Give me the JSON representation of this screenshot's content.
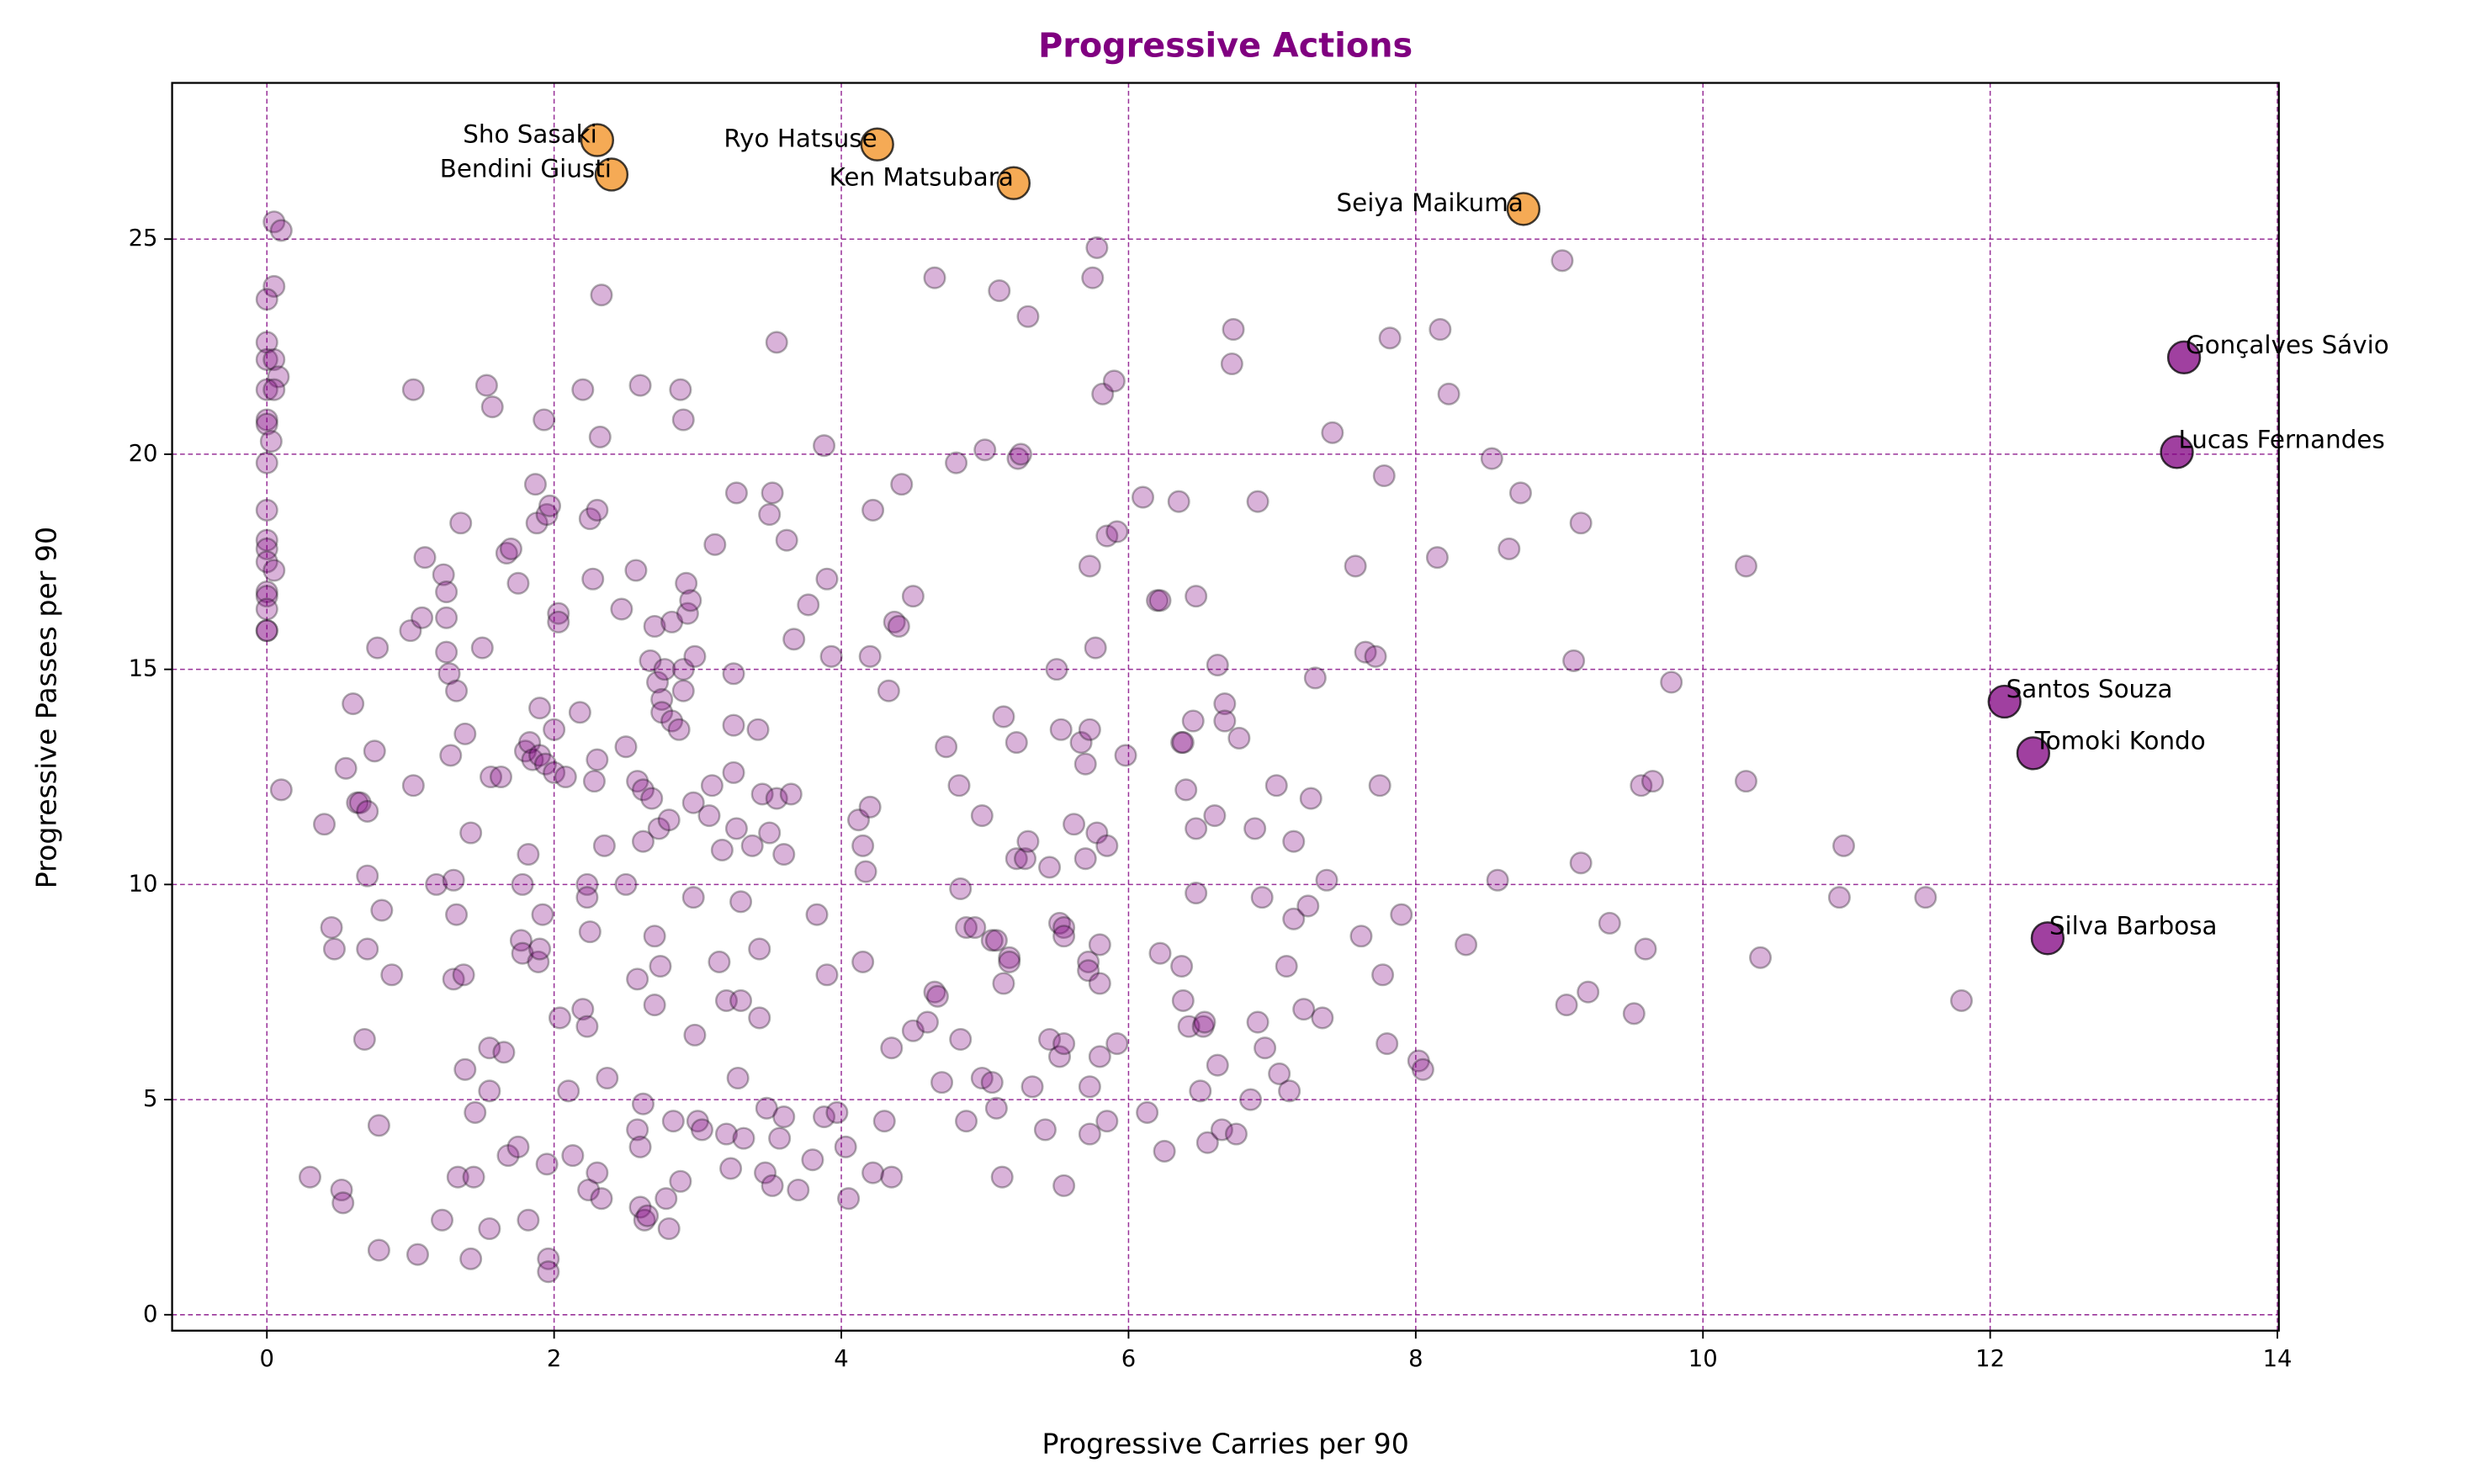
{
  "chart_data": {
    "type": "scatter",
    "title": "Progressive Actions",
    "x_label": "Progressive Carries per 90",
    "y_label": "Progressive Passes per 90",
    "xlim": [
      -0.66,
      14.01
    ],
    "ylim": [
      -0.37,
      28.63
    ],
    "xticks": [
      0,
      2,
      4,
      6,
      8,
      10,
      12,
      14
    ],
    "yticks": [
      0,
      5,
      10,
      15,
      20,
      25
    ],
    "grid": true,
    "grid_color": "#800080",
    "series": [
      {
        "color": "#800080",
        "alpha": 0.3,
        "size": 6.5,
        "x": [
          0.05,
          0.1,
          0.05,
          0,
          0,
          0,
          0.05,
          0.08,
          0,
          0.05,
          0,
          0,
          0.03,
          0,
          0,
          0,
          0,
          0,
          0.05,
          0,
          0,
          0,
          0,
          0,
          0.1,
          0.3,
          0.4,
          0.45,
          0.47,
          0.52,
          0.53,
          0.55,
          0.6,
          0.63,
          0.65,
          0.68,
          0.7,
          0.7,
          0.7,
          0.75,
          0.77,
          0.78,
          0.78,
          0.8,
          0.87,
          1.0,
          1.02,
          1.02,
          1.05,
          1.08,
          1.1,
          1.18,
          1.22,
          1.23,
          1.25,
          1.25,
          1.25,
          1.27,
          1.28,
          1.3,
          1.3,
          1.32,
          1.32,
          1.33,
          1.35,
          1.37,
          1.38,
          1.38,
          1.42,
          1.42,
          1.44,
          1.45,
          1.5,
          1.53,
          1.55,
          1.55,
          1.55,
          1.56,
          1.57,
          1.63,
          1.65,
          1.67,
          1.68,
          1.7,
          1.75,
          1.75,
          1.77,
          1.78,
          1.78,
          1.8,
          1.82,
          1.82,
          1.83,
          1.85,
          1.87,
          1.88,
          1.89,
          1.9,
          1.9,
          1.9,
          1.92,
          1.93,
          1.94,
          1.95,
          1.95,
          1.96,
          1.96,
          1.97,
          2.0,
          2.0,
          2.03,
          2.03,
          2.04,
          2.08,
          2.1,
          2.13,
          2.18,
          2.2,
          2.2,
          2.23,
          2.23,
          2.23,
          2.24,
          2.25,
          2.25,
          2.27,
          2.28,
          2.3,
          2.3,
          2.3,
          2.32,
          2.33,
          2.33,
          2.35,
          2.37,
          2.47,
          2.5,
          2.5,
          2.57,
          2.58,
          2.58,
          2.58,
          2.6,
          2.6,
          2.6,
          2.62,
          2.62,
          2.62,
          2.63,
          2.65,
          2.67,
          2.68,
          2.7,
          2.7,
          2.7,
          2.72,
          2.73,
          2.74,
          2.75,
          2.75,
          2.77,
          2.78,
          2.8,
          2.8,
          2.82,
          2.82,
          2.83,
          2.87,
          2.88,
          2.88,
          2.9,
          2.9,
          2.9,
          2.92,
          2.93,
          2.95,
          2.97,
          2.97,
          2.98,
          2.98,
          3.0,
          3.03,
          3.08,
          3.1,
          3.12,
          3.15,
          3.17,
          3.2,
          3.2,
          3.23,
          3.25,
          3.25,
          3.25,
          3.27,
          3.27,
          3.28,
          3.3,
          3.3,
          3.32,
          3.38,
          3.42,
          3.43,
          3.43,
          3.45,
          3.47,
          3.48,
          3.5,
          3.5,
          3.52,
          3.52,
          3.55,
          3.55,
          3.57,
          3.6,
          3.6,
          3.62,
          3.65,
          3.67,
          3.7,
          3.77,
          3.8,
          3.83,
          3.88,
          3.88,
          3.9,
          3.9,
          3.93,
          3.97,
          4.03,
          4.05,
          4.12,
          4.15,
          4.15,
          4.17,
          4.2,
          4.2,
          4.22,
          4.22,
          4.3,
          4.33,
          4.35,
          4.35,
          4.37,
          4.4,
          4.42,
          4.5,
          4.5,
          4.6,
          4.65,
          4.65,
          4.67,
          4.7,
          4.73,
          4.8,
          4.82,
          4.83,
          4.83,
          4.87,
          4.87,
          4.93,
          4.98,
          4.98,
          5.0,
          5.05,
          5.05,
          5.08,
          5.08,
          5.1,
          5.12,
          5.13,
          5.13,
          5.17,
          5.17,
          5.22,
          5.22,
          5.23,
          5.25,
          5.28,
          5.3,
          5.3,
          5.33,
          5.42,
          5.45,
          5.45,
          5.5,
          5.52,
          5.52,
          5.53,
          5.55,
          5.55,
          5.55,
          5.55,
          5.62,
          5.67,
          5.7,
          5.7,
          5.72,
          5.72,
          5.73,
          5.73,
          5.73,
          5.73,
          5.75,
          5.77,
          5.78,
          5.78,
          5.8,
          5.8,
          5.8,
          5.82,
          5.85,
          5.85,
          5.85,
          5.9,
          5.92,
          5.92,
          5.98,
          6.1,
          6.13,
          6.2,
          6.22,
          6.22,
          6.25,
          6.35,
          6.37,
          6.37,
          6.38,
          6.38,
          6.4,
          6.42,
          6.45,
          6.47,
          6.47,
          6.47,
          6.5,
          6.52,
          6.53,
          6.55,
          6.6,
          6.62,
          6.62,
          6.65,
          6.67,
          6.67,
          6.72,
          6.73,
          6.77,
          6.75,
          6.85,
          6.88,
          6.9,
          6.9,
          6.93,
          6.95,
          7.03,
          7.05,
          7.1,
          7.12,
          7.15,
          7.15,
          7.22,
          7.25,
          7.27,
          7.3,
          7.35,
          7.38,
          7.42,
          7.58,
          7.62,
          7.65,
          7.72,
          7.75,
          7.77,
          7.78,
          7.8,
          7.82,
          7.9,
          8.02,
          8.05,
          8.15,
          8.17,
          8.23,
          8.35,
          8.53,
          8.57,
          8.65,
          8.73,
          9.02,
          9.05,
          9.1,
          9.15,
          9.15,
          9.2,
          9.35,
          9.52,
          9.57,
          9.6,
          9.65,
          9.78,
          10.3,
          10.3,
          10.4,
          10.95,
          10.98,
          11.55,
          11.8
        ],
        "values": [
          25.4,
          25.2,
          23.9,
          23.6,
          22.6,
          22.2,
          22.2,
          21.8,
          21.5,
          21.5,
          20.8,
          20.7,
          20.3,
          19.8,
          18.7,
          18.0,
          17.8,
          17.5,
          17.3,
          16.8,
          16.7,
          16.4,
          15.9,
          15.9,
          12.2,
          3.2,
          11.4,
          9.0,
          8.5,
          2.9,
          2.6,
          12.7,
          14.2,
          11.9,
          11.9,
          6.4,
          11.7,
          10.2,
          8.5,
          13.1,
          15.5,
          4.4,
          1.5,
          9.4,
          7.9,
          15.9,
          21.5,
          12.3,
          1.4,
          16.2,
          17.6,
          10.0,
          2.2,
          17.2,
          16.2,
          15.4,
          16.8,
          14.9,
          13.0,
          10.1,
          7.8,
          14.5,
          9.3,
          3.2,
          18.4,
          7.9,
          13.5,
          5.7,
          11.2,
          1.3,
          3.2,
          4.7,
          15.5,
          21.6,
          6.2,
          5.2,
          2.0,
          12.5,
          21.1,
          12.5,
          6.1,
          17.7,
          3.7,
          17.8,
          17.0,
          3.9,
          8.7,
          10.0,
          8.4,
          13.1,
          2.2,
          10.7,
          13.3,
          12.9,
          19.3,
          18.4,
          8.2,
          14.1,
          13.0,
          8.5,
          9.3,
          20.8,
          12.8,
          18.6,
          3.5,
          1.3,
          1.0,
          18.8,
          13.6,
          12.6,
          16.3,
          16.1,
          6.9,
          12.5,
          5.2,
          3.7,
          14.0,
          21.5,
          7.1,
          10.0,
          9.7,
          6.7,
          2.9,
          18.5,
          8.9,
          17.1,
          12.4,
          18.7,
          12.9,
          3.3,
          20.4,
          23.7,
          2.7,
          10.9,
          5.5,
          16.4,
          13.2,
          10.0,
          17.3,
          12.4,
          7.8,
          4.3,
          3.9,
          2.5,
          21.6,
          12.2,
          11.0,
          4.9,
          2.2,
          2.3,
          15.2,
          12.0,
          16.0,
          8.8,
          7.2,
          14.7,
          11.3,
          8.1,
          14.3,
          14.0,
          15.0,
          2.7,
          11.5,
          2.0,
          16.1,
          13.8,
          4.5,
          13.6,
          3.1,
          21.5,
          20.8,
          15.0,
          14.5,
          17.0,
          16.3,
          16.6,
          11.9,
          9.7,
          6.5,
          15.3,
          4.5,
          4.3,
          11.6,
          12.3,
          17.9,
          8.2,
          10.8,
          7.3,
          4.2,
          3.4,
          12.6,
          13.7,
          14.9,
          19.1,
          11.3,
          5.5,
          9.6,
          7.3,
          4.1,
          10.9,
          13.6,
          8.5,
          6.9,
          12.1,
          3.3,
          4.8,
          18.6,
          11.2,
          19.1,
          3.0,
          12.0,
          22.6,
          4.1,
          10.7,
          4.6,
          18.0,
          12.1,
          15.7,
          2.9,
          16.5,
          3.6,
          9.3,
          20.2,
          4.6,
          17.1,
          7.9,
          15.3,
          4.7,
          3.9,
          2.7,
          11.5,
          10.9,
          8.2,
          10.3,
          15.3,
          11.8,
          18.7,
          3.3,
          4.5,
          14.5,
          6.2,
          3.2,
          16.1,
          16.0,
          19.3,
          16.7,
          6.6,
          6.8,
          7.5,
          24.1,
          7.4,
          5.4,
          13.2,
          19.8,
          12.3,
          9.9,
          6.4,
          9.0,
          4.5,
          9.0,
          11.6,
          5.5,
          20.1,
          8.7,
          5.4,
          8.7,
          4.8,
          23.8,
          3.2,
          7.7,
          13.9,
          8.3,
          8.2,
          13.3,
          10.6,
          19.9,
          20.0,
          10.6,
          23.2,
          11.0,
          5.3,
          4.3,
          10.4,
          6.4,
          15.0,
          9.1,
          6.0,
          13.6,
          9.0,
          8.8,
          6.3,
          3.0,
          11.4,
          13.3,
          12.8,
          10.6,
          8.2,
          8.0,
          17.4,
          13.6,
          4.2,
          5.3,
          24.1,
          15.5,
          24.8,
          11.2,
          8.6,
          7.7,
          6.0,
          21.4,
          18.1,
          10.9,
          4.5,
          21.7,
          18.2,
          6.3,
          13.0,
          19.0,
          4.7,
          16.6,
          16.6,
          8.4,
          3.8,
          18.9,
          13.3,
          8.1,
          13.3,
          7.3,
          12.2,
          6.7,
          13.8,
          16.7,
          11.3,
          9.8,
          5.2,
          6.7,
          6.8,
          4.0,
          11.6,
          15.1,
          5.8,
          4.3,
          14.2,
          13.8,
          22.1,
          22.9,
          13.4,
          4.2,
          5.0,
          11.3,
          18.9,
          6.8,
          9.7,
          6.2,
          12.3,
          5.6,
          8.1,
          5.2,
          11.0,
          9.2,
          7.1,
          9.5,
          12.0,
          14.8,
          6.9,
          10.1,
          20.5,
          17.4,
          8.8,
          15.4,
          15.3,
          12.3,
          7.9,
          19.5,
          6.3,
          22.7,
          9.3,
          5.9,
          5.7,
          17.6,
          22.9,
          21.4,
          8.6,
          19.9,
          10.1,
          17.8,
          19.1,
          24.5,
          7.2,
          15.2,
          18.4,
          10.5,
          7.5,
          9.1,
          7.0,
          12.3,
          8.5,
          12.4,
          14.7,
          17.4,
          12.4,
          8.3,
          9.7,
          10.9,
          9.7,
          7.3
        ]
      },
      {
        "color": "#f28e1c",
        "alpha": 0.75,
        "size": 10,
        "label_side": "left",
        "x": [
          2.3,
          2.4,
          4.25,
          5.2,
          8.75
        ],
        "values": [
          27.3,
          26.5,
          27.2,
          26.3,
          25.7
        ],
        "labels": [
          "Sho Sasaki",
          "Bendini Giusti",
          "Ryo Hatsuse",
          "Ken Matsubara",
          "Seiya Maikuma"
        ]
      },
      {
        "color": "#800080",
        "alpha": 0.75,
        "size": 10,
        "label_side": "right",
        "x": [
          13.35,
          13.3,
          12.1,
          12.3,
          12.4
        ],
        "values": [
          22.25,
          20.05,
          14.25,
          13.05,
          8.75
        ],
        "labels": [
          "Gonçalves Sávio",
          "Lucas Fernandes",
          "Santos Souza",
          "Tomoki Kondo",
          "Silva Barbosa"
        ]
      }
    ]
  }
}
